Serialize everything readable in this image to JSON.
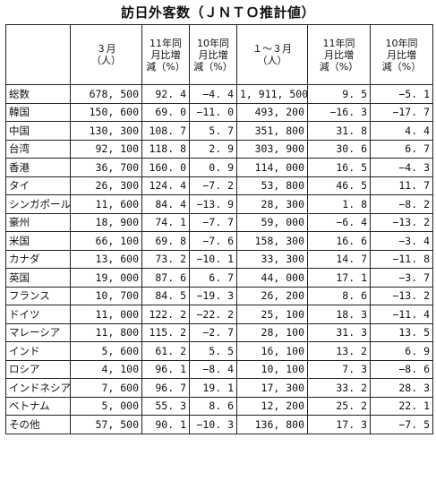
{
  "title": "訪日外客数（ＪＮＴＯ推計値）",
  "headers": [
    "",
    "３月\n（人）",
    "11年同\n月比増\n減（%）",
    "10年同\n月比増\n減（%）",
    "１～３月\n（人）",
    "11年同\n月比増\n減（%）",
    "10年同\n月比増\n減（%）"
  ],
  "rows": [
    {
      "name": "総数",
      "mar": "678, 500",
      "mar_vs11": "92. 4",
      "mar_vs10": "−4. 4",
      "q1": "1, 911, 500",
      "q1_vs11": "9. 5",
      "q1_vs10": "−5. 1"
    },
    {
      "name": "韓国",
      "mar": "150, 600",
      "mar_vs11": "69. 0",
      "mar_vs10": "−11. 0",
      "q1": "493, 200",
      "q1_vs11": "−16. 3",
      "q1_vs10": "−17. 7"
    },
    {
      "name": "中国",
      "mar": "130, 300",
      "mar_vs11": "108. 7",
      "mar_vs10": "5. 7",
      "q1": "351, 800",
      "q1_vs11": "31. 8",
      "q1_vs10": "4. 4"
    },
    {
      "name": "台湾",
      "mar": "92, 100",
      "mar_vs11": "118. 8",
      "mar_vs10": "2. 9",
      "q1": "303, 900",
      "q1_vs11": "30. 6",
      "q1_vs10": "6. 7"
    },
    {
      "name": "香港",
      "mar": "36, 700",
      "mar_vs11": "160. 0",
      "mar_vs10": "0. 9",
      "q1": "114, 000",
      "q1_vs11": "16. 5",
      "q1_vs10": "−4. 3"
    },
    {
      "name": "タイ",
      "mar": "26, 300",
      "mar_vs11": "124. 4",
      "mar_vs10": "−7. 2",
      "q1": "53, 800",
      "q1_vs11": "46. 5",
      "q1_vs10": "11. 7"
    },
    {
      "name": "シンガポール",
      "mar": "11, 600",
      "mar_vs11": "84. 4",
      "mar_vs10": "−13. 9",
      "q1": "28, 300",
      "q1_vs11": "1. 8",
      "q1_vs10": "−8. 2"
    },
    {
      "name": "豪州",
      "mar": "18, 900",
      "mar_vs11": "74. 1",
      "mar_vs10": "−7. 7",
      "q1": "59, 000",
      "q1_vs11": "−6. 4",
      "q1_vs10": "−13. 2"
    },
    {
      "name": "米国",
      "mar": "66, 100",
      "mar_vs11": "69. 8",
      "mar_vs10": "−7. 6",
      "q1": "158, 300",
      "q1_vs11": "16. 6",
      "q1_vs10": "−3. 4"
    },
    {
      "name": "カナダ",
      "mar": "13, 600",
      "mar_vs11": "73. 2",
      "mar_vs10": "−10. 1",
      "q1": "33, 300",
      "q1_vs11": "14. 7",
      "q1_vs10": "−11. 8"
    },
    {
      "name": "英国",
      "mar": "19, 000",
      "mar_vs11": "87. 6",
      "mar_vs10": "6. 7",
      "q1": "44, 000",
      "q1_vs11": "17. 1",
      "q1_vs10": "−3. 7"
    },
    {
      "name": "フランス",
      "mar": "10, 700",
      "mar_vs11": "84. 5",
      "mar_vs10": "−19. 3",
      "q1": "26, 200",
      "q1_vs11": "8. 6",
      "q1_vs10": "−13. 2"
    },
    {
      "name": "ドイツ",
      "mar": "11, 000",
      "mar_vs11": "122. 2",
      "mar_vs10": "−22. 2",
      "q1": "25, 100",
      "q1_vs11": "18. 3",
      "q1_vs10": "−11. 4"
    },
    {
      "name": "マレーシア",
      "mar": "11, 800",
      "mar_vs11": "115. 2",
      "mar_vs10": "−2. 7",
      "q1": "28, 100",
      "q1_vs11": "31. 3",
      "q1_vs10": "13. 5"
    },
    {
      "name": "インド",
      "mar": "5, 600",
      "mar_vs11": "61. 2",
      "mar_vs10": "5. 5",
      "q1": "16, 100",
      "q1_vs11": "13. 2",
      "q1_vs10": "6. 9"
    },
    {
      "name": "ロシア",
      "mar": "4, 100",
      "mar_vs11": "96. 1",
      "mar_vs10": "−8. 4",
      "q1": "10, 100",
      "q1_vs11": "7. 3",
      "q1_vs10": "−8. 6"
    },
    {
      "name": "インドネシア",
      "mar": "7, 600",
      "mar_vs11": "96. 7",
      "mar_vs10": "19. 1",
      "q1": "17, 300",
      "q1_vs11": "33. 2",
      "q1_vs10": "28. 3"
    },
    {
      "name": "ベトナム",
      "mar": "5, 000",
      "mar_vs11": "55. 3",
      "mar_vs10": "8. 6",
      "q1": "12, 200",
      "q1_vs11": "25. 2",
      "q1_vs10": "22. 1"
    },
    {
      "name": "その他",
      "mar": "57, 500",
      "mar_vs11": "90. 1",
      "mar_vs10": "−10. 3",
      "q1": "136, 800",
      "q1_vs11": "17. 3",
      "q1_vs10": "−7. 5"
    }
  ]
}
